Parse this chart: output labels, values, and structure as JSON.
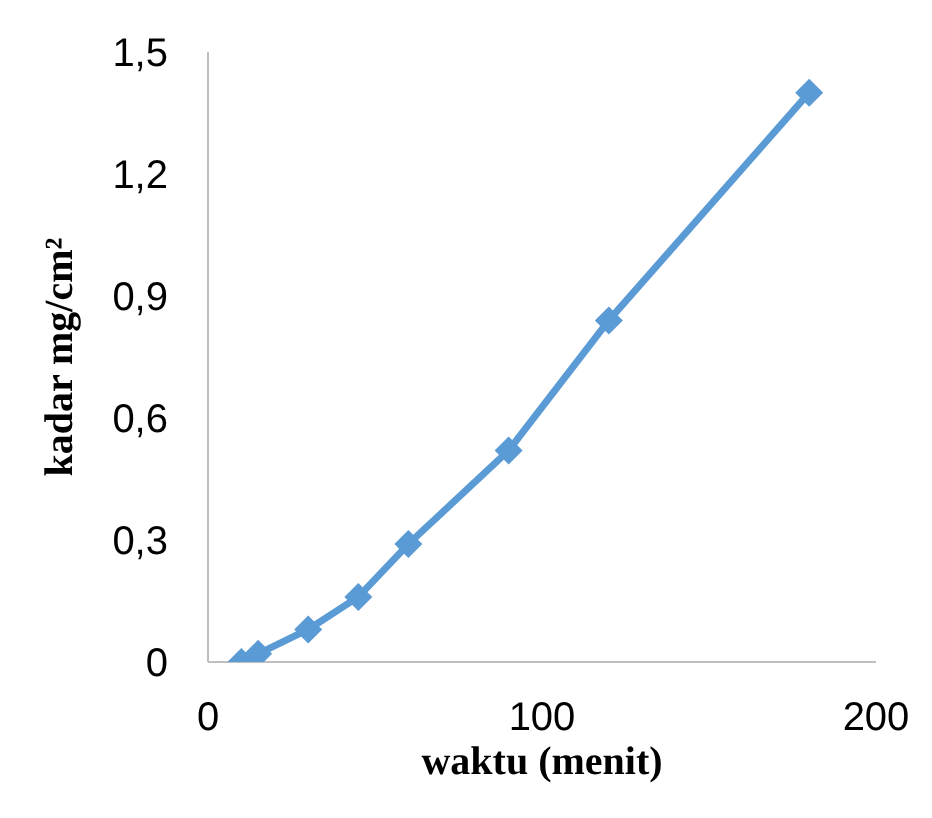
{
  "chart_data": {
    "type": "line",
    "xlabel": "waktu (menit)",
    "ylabel": "kadar mg/cm²",
    "x": [
      10,
      15,
      30,
      45,
      60,
      90,
      120,
      180
    ],
    "series": [
      {
        "color": "#5b9bd5",
        "values": [
          0,
          0.02,
          0.08,
          0.16,
          0.29,
          0.52,
          0.84,
          1.4
        ]
      }
    ],
    "xlim": [
      0,
      200
    ],
    "xticks": [
      0,
      100,
      200
    ],
    "ylim": [
      0,
      1.5
    ],
    "yticks": [
      0,
      {
        "value": 0.3,
        "label": "0,3"
      },
      {
        "value": 0.6,
        "label": "0,6"
      },
      {
        "value": 0.9,
        "label": "0,9"
      },
      {
        "value": 1.2,
        "label": "1,2"
      },
      {
        "value": 1.5,
        "label": "1,5"
      }
    ],
    "grid": false,
    "legend": false,
    "marker": "diamond",
    "line_style": "solid"
  }
}
